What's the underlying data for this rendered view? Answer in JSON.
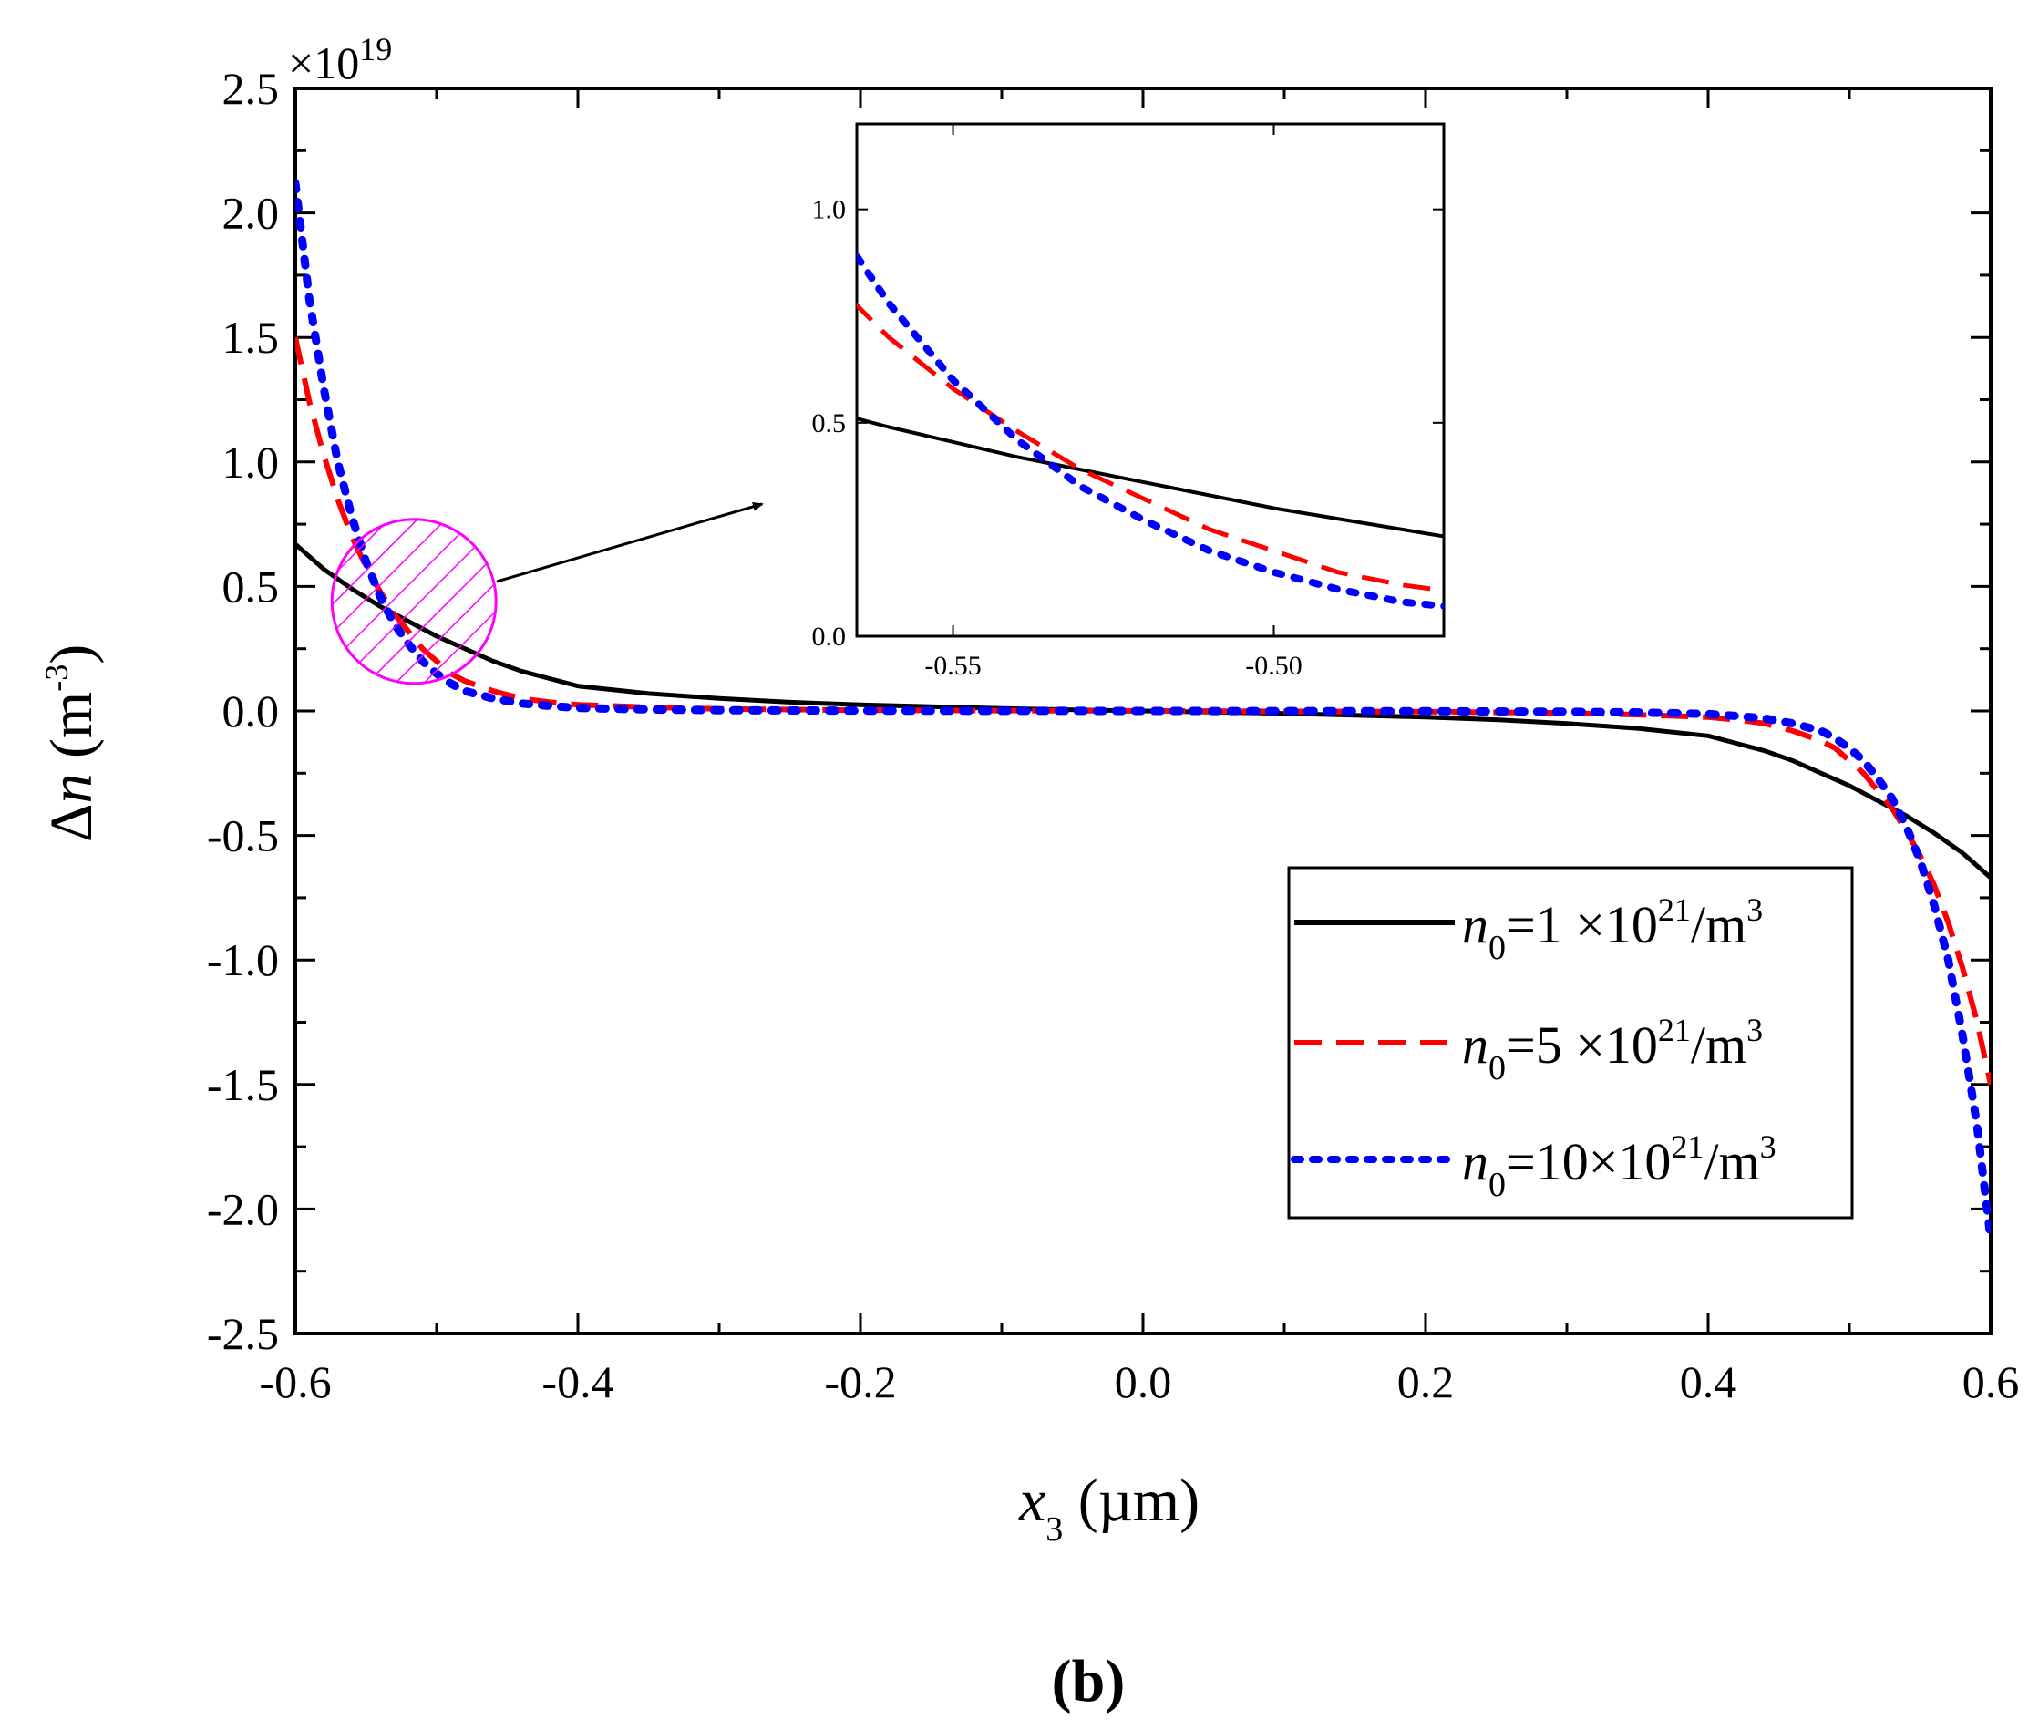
{
  "chart_data": {
    "type": "line",
    "caption": "(b)",
    "exponent": {
      "base": "×10",
      "power": "19"
    },
    "xlabel": {
      "symbol": "x",
      "sub": "3",
      "unit": " (µm)"
    },
    "ylabel": {
      "prefix": "Δ",
      "symbol": "n",
      "unit_open": " (m",
      "sup": "-3",
      "unit_close": ")"
    },
    "xlim": [
      -0.6,
      0.6
    ],
    "ylim": [
      -2.5,
      2.5
    ],
    "x_ticks": [
      -0.6,
      -0.4,
      -0.2,
      0.0,
      0.2,
      0.4,
      0.6
    ],
    "x_tick_labels": [
      "-0.6",
      "-0.4",
      "-0.2",
      "0.0",
      "0.2",
      "0.4",
      "0.6"
    ],
    "y_ticks": [
      2.5,
      2.0,
      1.5,
      1.0,
      0.5,
      0.0,
      -0.5,
      -1.0,
      -1.5,
      -2.0,
      -2.5
    ],
    "y_tick_labels": [
      "2.5",
      "2.0",
      "1.5",
      "1.0",
      "0.5",
      "0.0",
      "-0.5",
      "-1.0",
      "-1.5",
      "-2.0",
      "-2.5"
    ],
    "legend": {
      "position": "right-lower"
    },
    "series": [
      {
        "name": "n0=1×10^21/m^3",
        "label": {
          "symbol": "n",
          "sub": "0",
          "eq": "=1  ×10",
          "sup": "21",
          "unit": "/m",
          "unit_sup": "3"
        },
        "color": "#000000",
        "style": "solid",
        "x": [
          -0.6,
          -0.58,
          -0.56,
          -0.54,
          -0.52,
          -0.5,
          -0.48,
          -0.46,
          -0.44,
          -0.42,
          -0.4,
          -0.35,
          -0.3,
          -0.25,
          -0.2,
          -0.1,
          0.0,
          0.1,
          0.2,
          0.25,
          0.3,
          0.35,
          0.4,
          0.42,
          0.44,
          0.46,
          0.48,
          0.5,
          0.52,
          0.54,
          0.56,
          0.58,
          0.6
        ],
        "y": [
          0.67,
          0.57,
          0.49,
          0.42,
          0.36,
          0.3,
          0.25,
          0.2,
          0.16,
          0.13,
          0.1,
          0.07,
          0.05,
          0.035,
          0.025,
          0.01,
          0.0,
          -0.01,
          -0.025,
          -0.035,
          -0.05,
          -0.07,
          -0.1,
          -0.13,
          -0.16,
          -0.2,
          -0.25,
          -0.3,
          -0.36,
          -0.42,
          -0.49,
          -0.57,
          -0.67
        ]
      },
      {
        "name": "n0=5×10^21/m^3",
        "label": {
          "symbol": "n",
          "sub": "0",
          "eq": "=5  ×10",
          "sup": "21",
          "unit": "/m",
          "unit_sup": "3"
        },
        "color": "#ff0000",
        "style": "dashed",
        "x": [
          -0.6,
          -0.59,
          -0.58,
          -0.57,
          -0.56,
          -0.55,
          -0.54,
          -0.53,
          -0.52,
          -0.51,
          -0.5,
          -0.49,
          -0.48,
          -0.46,
          -0.44,
          -0.42,
          -0.4,
          -0.35,
          -0.3,
          -0.2,
          0.0,
          0.2,
          0.3,
          0.35,
          0.4,
          0.42,
          0.44,
          0.46,
          0.48,
          0.49,
          0.5,
          0.51,
          0.52,
          0.53,
          0.54,
          0.55,
          0.56,
          0.57,
          0.58,
          0.59,
          0.6
        ],
        "y": [
          1.5,
          1.24,
          1.03,
          0.85,
          0.7,
          0.58,
          0.48,
          0.39,
          0.32,
          0.25,
          0.2,
          0.15,
          0.12,
          0.08,
          0.05,
          0.035,
          0.025,
          0.015,
          0.008,
          0.003,
          0.0,
          -0.003,
          -0.008,
          -0.015,
          -0.025,
          -0.035,
          -0.05,
          -0.08,
          -0.12,
          -0.15,
          -0.2,
          -0.25,
          -0.32,
          -0.39,
          -0.48,
          -0.58,
          -0.7,
          -0.85,
          -1.03,
          -1.24,
          -1.5
        ]
      },
      {
        "name": "n0=10×10^21/m^3",
        "label": {
          "symbol": "n",
          "sub": "0",
          "eq": "=10×10",
          "sup": "21",
          "unit": "/m",
          "unit_sup": "3"
        },
        "color": "#0000ff",
        "style": "dotted",
        "x": [
          -0.6,
          -0.59,
          -0.58,
          -0.57,
          -0.56,
          -0.55,
          -0.54,
          -0.53,
          -0.52,
          -0.51,
          -0.5,
          -0.49,
          -0.48,
          -0.46,
          -0.44,
          -0.42,
          -0.4,
          -0.35,
          -0.3,
          -0.2,
          0.0,
          0.2,
          0.3,
          0.35,
          0.4,
          0.42,
          0.44,
          0.46,
          0.48,
          0.49,
          0.5,
          0.51,
          0.52,
          0.53,
          0.54,
          0.55,
          0.56,
          0.57,
          0.58,
          0.59,
          0.6
        ],
        "y": [
          2.12,
          1.65,
          1.3,
          1.0,
          0.78,
          0.6,
          0.46,
          0.35,
          0.27,
          0.2,
          0.15,
          0.11,
          0.08,
          0.05,
          0.03,
          0.02,
          0.012,
          0.006,
          0.003,
          0.001,
          0.0,
          -0.001,
          -0.003,
          -0.006,
          -0.012,
          -0.02,
          -0.03,
          -0.05,
          -0.08,
          -0.11,
          -0.15,
          -0.2,
          -0.27,
          -0.35,
          -0.46,
          -0.6,
          -0.78,
          -1.0,
          -1.3,
          -1.65,
          -2.12
        ]
      }
    ],
    "inset": {
      "xlim": [
        -0.565,
        -0.4735
      ],
      "ylim": [
        0.0,
        1.2
      ],
      "x_ticks": [
        -0.55,
        -0.5
      ],
      "x_tick_labels": [
        "-0.55",
        "-0.50"
      ],
      "y_ticks": [
        0.0,
        0.5,
        1.0
      ],
      "y_tick_labels": [
        "0.0",
        "0.5",
        "1.0"
      ]
    },
    "zoom_highlight": {
      "x_center": -0.516,
      "y_center": 0.44,
      "color": "#ff00ff"
    }
  }
}
